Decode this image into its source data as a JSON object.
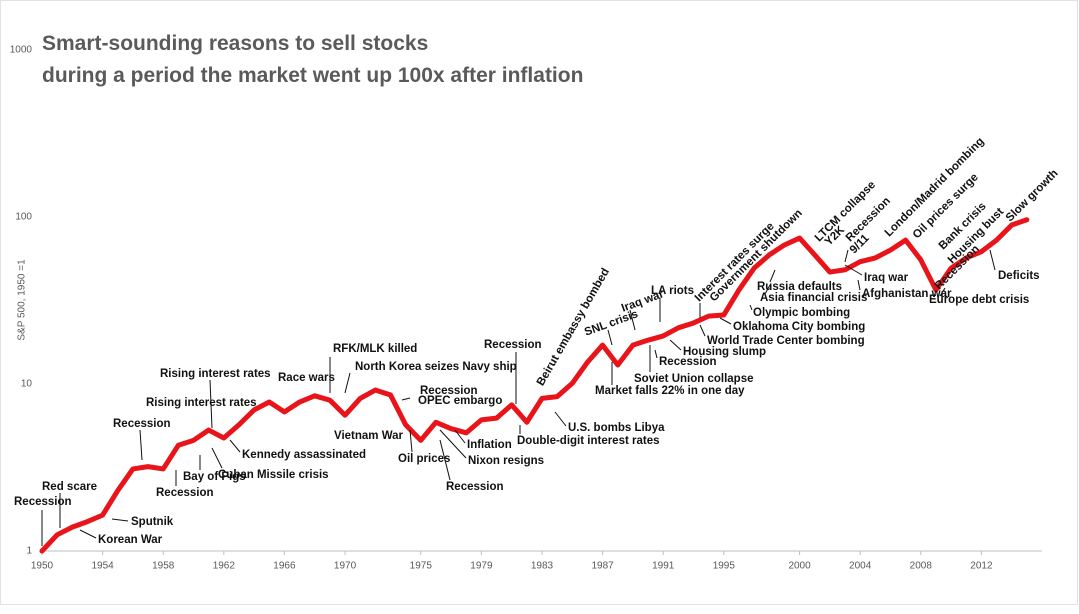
{
  "chart_data": {
    "type": "line",
    "title": [
      "Smart-sounding reasons to sell stocks",
      "during a period the market went up 100x after inflation"
    ],
    "y_label": "S&P 500, 1950 =1",
    "log_scale_y": true,
    "color": "#e8141a",
    "x": [
      1950,
      1951,
      1952,
      1953,
      1954,
      1955,
      1956,
      1957,
      1958,
      1959,
      1960,
      1961,
      1962,
      1963,
      1964,
      1965,
      1966,
      1967,
      1968,
      1969,
      1970,
      1971,
      1972,
      1973,
      1974,
      1975,
      1976,
      1977,
      1978,
      1979,
      1980,
      1981,
      1982,
      1983,
      1984,
      1985,
      1986,
      1987,
      1988,
      1989,
      1990,
      1991,
      1992,
      1993,
      1994,
      1995,
      1996,
      1997,
      1998,
      1999,
      2000,
      2001,
      2002,
      2003,
      2004,
      2005,
      2006,
      2007,
      2008,
      2009,
      2010,
      2011,
      2012,
      2013,
      2014,
      2015
    ],
    "values": [
      1,
      1.25,
      1.39,
      1.5,
      1.64,
      2.3,
      3.1,
      3.2,
      3.1,
      4.3,
      4.6,
      5.3,
      4.75,
      5.7,
      7.0,
      7.8,
      6.8,
      7.8,
      8.5,
      8.0,
      6.5,
      8.2,
      9.2,
      8.6,
      5.7,
      4.6,
      5.9,
      5.4,
      5.1,
      6.1,
      6.25,
      7.5,
      5.9,
      8.2,
      8.4,
      10.1,
      13.5,
      17.1,
      13.0,
      17.1,
      18.3,
      19.4,
      21.7,
      23.2,
      25.5,
      25.9,
      36.6,
      49.4,
      59.3,
      68.0,
      74.8,
      59.3,
      46.8,
      48.3,
      54.0,
      56.9,
      63.4,
      72.7,
      55.4,
      36.6,
      49.4,
      56.9,
      62,
      72.7,
      89.5,
      96.3
    ],
    "xlim": [
      1950,
      2016
    ],
    "xticks": [
      1950,
      1954,
      1958,
      1962,
      1966,
      1970,
      1975,
      1979,
      1983,
      1987,
      1991,
      1995,
      2000,
      2004,
      2008,
      2012
    ],
    "ylim": [
      1,
      1000
    ],
    "yticks": [
      1,
      10,
      100,
      1000
    ],
    "annotations": [
      "Recession",
      "Red scare",
      "Sputnik",
      "Korean War",
      "Recession",
      "Rising interest rates",
      "Rising interest rates",
      "Recession",
      "Bay of Pigs",
      "Cuban Missile crisis",
      "Kennedy assassinated",
      "Race wars",
      "RFK/MLK killed",
      "North Korea seizes Navy ship",
      "Vietnam War",
      "Recession",
      "OPEC embargo",
      "Oil prices",
      "Inflation",
      "Nixon resigns",
      "Recession",
      "Recession",
      "Beirut embassy bombed",
      "Double-digit interest rates",
      "U.S. bombs Libya",
      "Market falls 22% in one day",
      "SNL crisis",
      "Iraq war",
      "LA riots",
      "Interest rates surge",
      "Government shutdown",
      "Soviet Union collapse",
      "Recession",
      "Housing slump",
      "World Trade Center bombing",
      "Oklahoma City bombing",
      "Olympic bombing",
      "Asia financial crisis",
      "Russia defaults",
      "LTCM collapse",
      "Y2K",
      "Recession",
      "9/11",
      "London/Madrid bombing",
      "Oil prices surge",
      "Bank crisis",
      "Housing bust",
      "Slow growth",
      "Iraq war",
      "Afghanistan war",
      "Recession",
      "Europe debt crisis",
      "Deficits"
    ]
  }
}
